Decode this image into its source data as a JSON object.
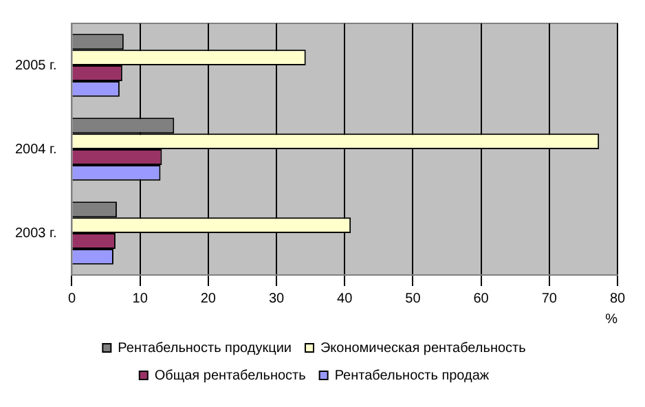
{
  "chart_data": {
    "type": "bar",
    "orientation": "horizontal",
    "categories": [
      "2005 г.",
      "2004 г.",
      "2003 г."
    ],
    "xlabel": "%",
    "xlim": [
      0,
      80
    ],
    "xticks": [
      0,
      10,
      20,
      30,
      40,
      50,
      60,
      70,
      80
    ],
    "grid": "x",
    "legend": "bottom",
    "series": [
      {
        "name": "Рентабельность продукции",
        "color": "#808080",
        "values": [
          7.6,
          15.0,
          6.6
        ]
      },
      {
        "name": "Экономическая рентабельность",
        "color": "#ffffcc",
        "values": [
          34.3,
          77.3,
          40.9
        ]
      },
      {
        "name": "Общая рентабельность",
        "color": "#993366",
        "values": [
          7.4,
          13.2,
          6.4
        ]
      },
      {
        "name": "Рентабельность продаж",
        "color": "#9999ff",
        "values": [
          7.0,
          13.0,
          6.1
        ]
      }
    ]
  }
}
